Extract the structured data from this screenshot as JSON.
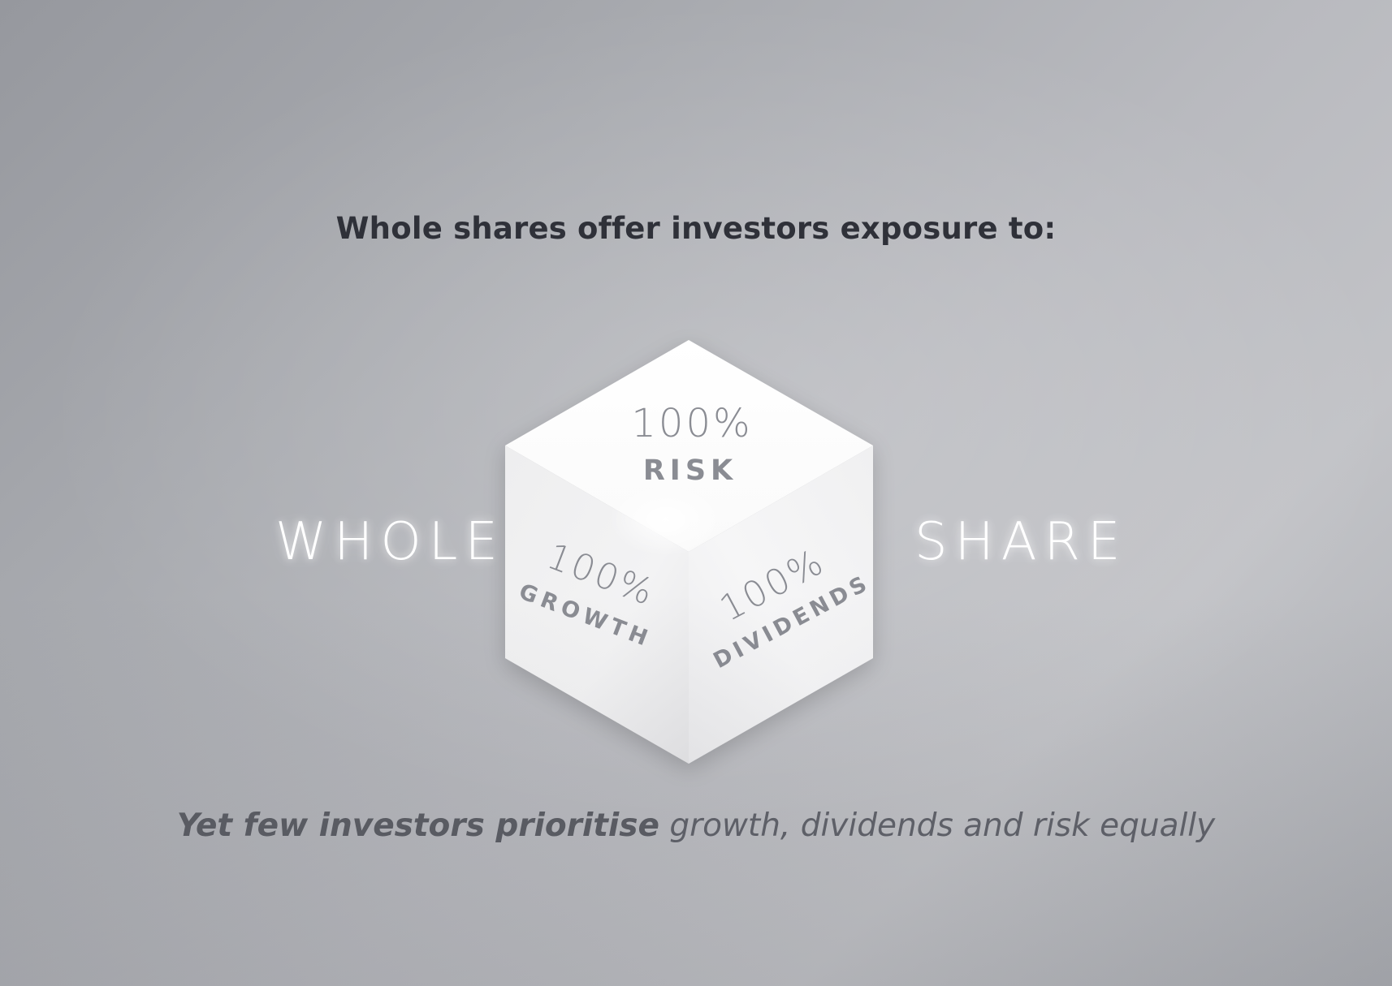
{
  "headline": "Whole shares offer investors exposure to:",
  "left_word": "WHOLE",
  "right_word": "SHARE",
  "cube": {
    "top_face": {
      "percent": "100%",
      "label": "RISK"
    },
    "left_face": {
      "percent": "100%",
      "label": "GROWTH"
    },
    "right_face": {
      "percent": "100%",
      "label": "DIVIDENDS"
    }
  },
  "footer": {
    "bold_part": "Yet few investors prioritise",
    "light_part": "growth, dividends and risk equally"
  },
  "colors": {
    "headline": "#2f3139",
    "cube_text": "#8a8c93",
    "side_words": "#ffffff",
    "footer": "#5b5d64"
  }
}
